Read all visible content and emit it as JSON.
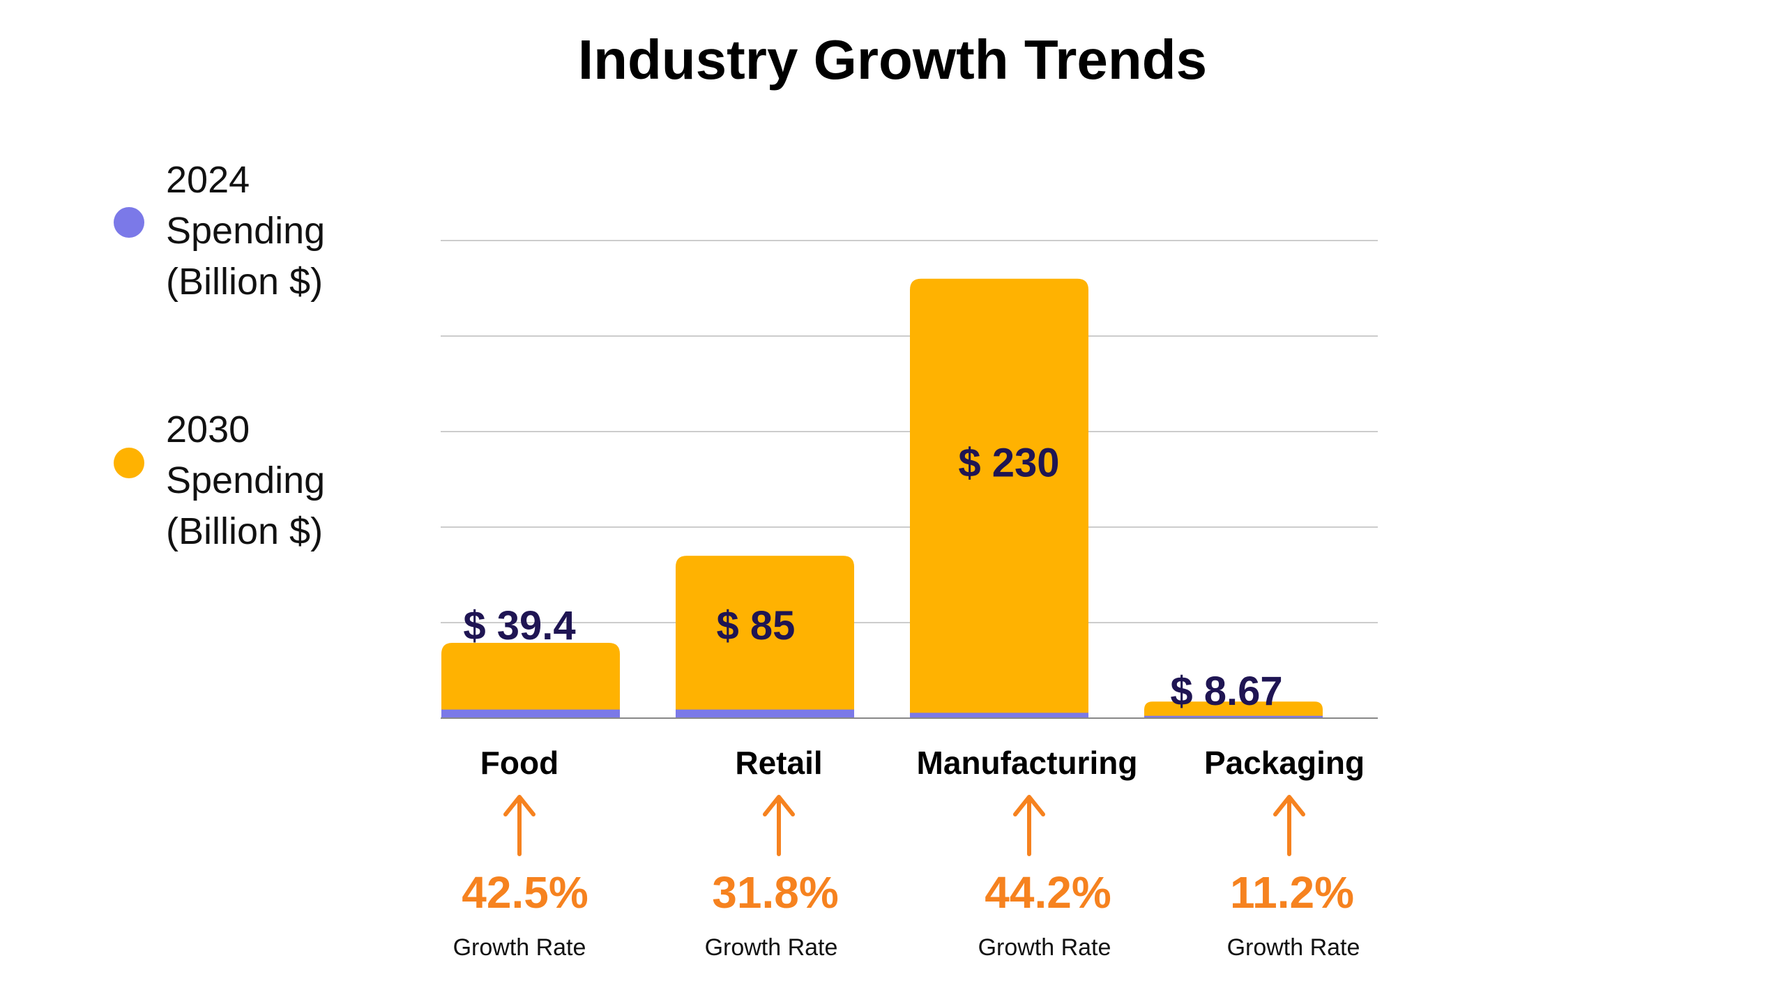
{
  "chart_data": {
    "type": "bar",
    "title": "Industry Growth Trends",
    "categories": [
      "Food",
      "Retail",
      "Manufacturing",
      "Packaging"
    ],
    "series": [
      {
        "name": "2024 Spending (Billion $)",
        "values": [
          4.5,
          4.5,
          2.8,
          1.2
        ],
        "color": "#7b79e8"
      },
      {
        "name": "2030 Spending (Billion $)",
        "values": [
          39.4,
          85,
          230,
          8.67
        ],
        "color": "#ffb201"
      }
    ],
    "value_labels": [
      "$ 39.4",
      "$ 85",
      "$ 230",
      "$ 8.67"
    ],
    "growth_rates": [
      "42.5%",
      "31.8%",
      "44.2%",
      "11.2%"
    ],
    "growth_caption": "Growth Rate",
    "growth_arrow": "↑",
    "ylim": [
      0,
      250
    ],
    "ytick_step": 50,
    "grid": true,
    "legend_position": "left",
    "colors": {
      "label": "#1f1553",
      "growth": "#f6821f",
      "grid": "#cccccc",
      "axis": "#888888",
      "category": "#000000",
      "caption": "#111111"
    }
  },
  "legend": [
    {
      "label": "2024 Spending (Billion $)",
      "lines": [
        "2024",
        "Spending",
        "(Billion $)"
      ],
      "color": "#7b79e8"
    },
    {
      "label": "2030 Spending (Billion $)",
      "lines": [
        "2030",
        "Spending",
        "(Billion $)"
      ],
      "color": "#ffb201"
    }
  ]
}
